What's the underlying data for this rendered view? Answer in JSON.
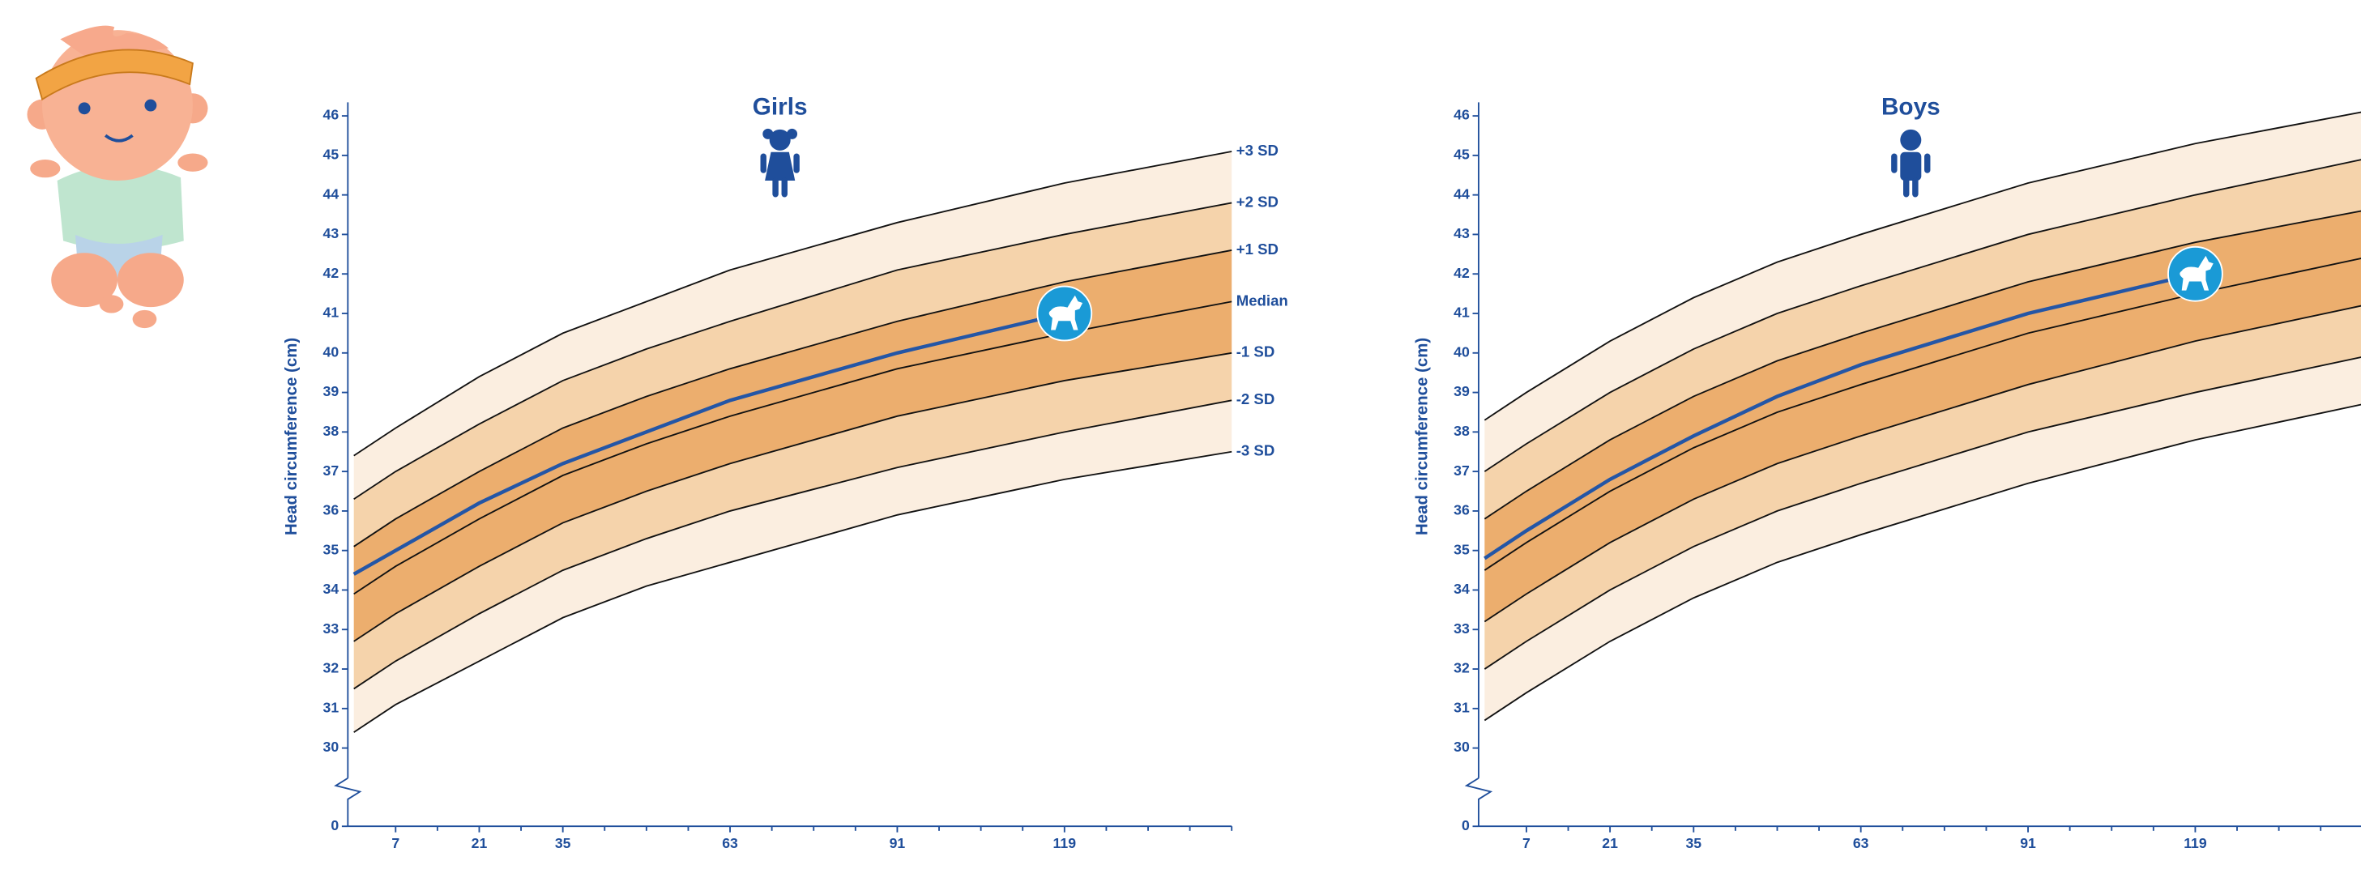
{
  "chart_data": [
    {
      "type": "line",
      "title": "Girls",
      "y_label": "Head circumference (cm)",
      "x": [
        0,
        7,
        21,
        35,
        49,
        63,
        91,
        119,
        147
      ],
      "xlim": [
        -1,
        147
      ],
      "xticks": [
        7,
        21,
        35,
        63,
        91,
        119
      ],
      "x_minor_ticks": [
        14,
        28,
        42,
        49,
        56,
        70,
        77,
        84,
        98,
        105,
        112,
        126,
        133,
        140,
        147
      ],
      "ylim": [
        30,
        46
      ],
      "yticks": [
        0,
        30,
        31,
        32,
        33,
        34,
        35,
        36,
        37,
        38,
        39,
        40,
        41,
        42,
        43,
        44,
        45,
        46
      ],
      "axis_break": true,
      "band_colors": [
        "#fbeee0",
        "#f5d3ab",
        "#ecae6e"
      ],
      "series": [
        {
          "name": "+3 SD",
          "color": "#111111",
          "values": [
            37.4,
            38.1,
            39.4,
            40.5,
            41.3,
            42.1,
            43.3,
            44.3,
            45.1
          ]
        },
        {
          "name": "+2 SD",
          "color": "#111111",
          "values": [
            36.3,
            37.0,
            38.2,
            39.3,
            40.1,
            40.8,
            42.1,
            43.0,
            43.8
          ]
        },
        {
          "name": "+1 SD",
          "color": "#111111",
          "values": [
            35.1,
            35.8,
            37.0,
            38.1,
            38.9,
            39.6,
            40.8,
            41.8,
            42.6
          ]
        },
        {
          "name": "Median",
          "color": "#111111",
          "values": [
            33.9,
            34.6,
            35.8,
            36.9,
            37.7,
            38.4,
            39.6,
            40.5,
            41.3
          ]
        },
        {
          "name": "-1 SD",
          "color": "#111111",
          "values": [
            32.7,
            33.4,
            34.6,
            35.7,
            36.5,
            37.2,
            38.4,
            39.3,
            40.0
          ]
        },
        {
          "name": "-2 SD",
          "color": "#111111",
          "values": [
            31.5,
            32.2,
            33.4,
            34.5,
            35.3,
            36.0,
            37.1,
            38.0,
            38.8
          ]
        },
        {
          "name": "-3 SD",
          "color": "#111111",
          "values": [
            30.4,
            31.1,
            32.2,
            33.3,
            34.1,
            34.7,
            35.9,
            36.8,
            37.5
          ]
        },
        {
          "color": "#2456a6",
          "values": [
            34.4,
            35.0,
            36.2,
            37.2,
            38.0,
            38.8,
            40.0,
            41.0,
            null
          ]
        }
      ]
    },
    {
      "type": "line",
      "title": "Boys",
      "y_label": "Head circumference (cm)",
      "x": [
        0,
        7,
        21,
        35,
        49,
        63,
        91,
        119,
        147
      ],
      "xlim": [
        -1,
        147
      ],
      "xticks": [
        7,
        21,
        35,
        63,
        91,
        119
      ],
      "x_minor_ticks": [
        14,
        28,
        42,
        49,
        56,
        70,
        77,
        84,
        98,
        105,
        112,
        126,
        133,
        140
      ],
      "ylim": [
        30,
        46
      ],
      "yticks": [
        0,
        30,
        31,
        32,
        33,
        34,
        35,
        36,
        37,
        38,
        39,
        40,
        41,
        42,
        43,
        44,
        45,
        46
      ],
      "axis_break": true,
      "band_colors": [
        "#fbeee0",
        "#f5d3ab",
        "#ecae6e"
      ],
      "series": [
        {
          "color": "#111111",
          "values": [
            38.3,
            39.0,
            40.3,
            41.4,
            42.3,
            43.0,
            44.3,
            45.3,
            46.1
          ]
        },
        {
          "color": "#111111",
          "values": [
            37.0,
            37.7,
            39.0,
            40.1,
            41.0,
            41.7,
            43.0,
            44.0,
            44.9
          ]
        },
        {
          "color": "#111111",
          "values": [
            35.8,
            36.5,
            37.8,
            38.9,
            39.8,
            40.5,
            41.8,
            42.8,
            43.6
          ]
        },
        {
          "color": "#111111",
          "values": [
            34.5,
            35.2,
            36.5,
            37.6,
            38.5,
            39.2,
            40.5,
            41.5,
            42.4
          ]
        },
        {
          "color": "#111111",
          "values": [
            33.2,
            33.9,
            35.2,
            36.3,
            37.2,
            37.9,
            39.2,
            40.3,
            41.2
          ]
        },
        {
          "color": "#111111",
          "values": [
            32.0,
            32.7,
            34.0,
            35.1,
            36.0,
            36.7,
            38.0,
            39.0,
            39.9
          ]
        },
        {
          "color": "#111111",
          "values": [
            30.7,
            31.4,
            32.7,
            33.8,
            34.7,
            35.4,
            36.7,
            37.8,
            38.7
          ]
        },
        {
          "color": "#2456a6",
          "values": [
            34.8,
            35.5,
            36.8,
            37.9,
            38.9,
            39.7,
            41.0,
            42.0,
            null
          ]
        }
      ]
    }
  ]
}
